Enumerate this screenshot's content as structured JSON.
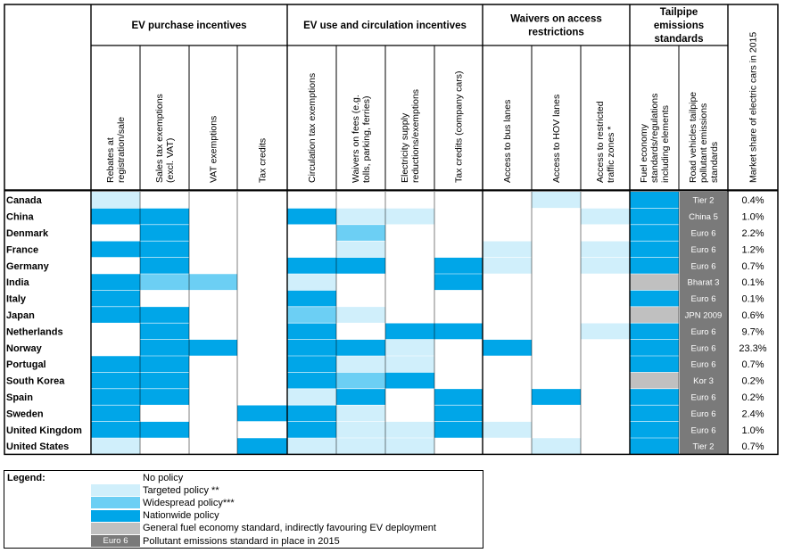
{
  "palette": {
    "none": "#ffffff",
    "targeted": "#d0effb",
    "widespread": "#6ccff4",
    "nationwide": "#00a6e8",
    "fuel_economy": "#c0c0c0",
    "pollutant": "#7a7a7a"
  },
  "groups": [
    {
      "label": "EV purchase incentives",
      "cols": 4
    },
    {
      "label": "EV use and circulation incentives",
      "cols": 4
    },
    {
      "label": "Waivers on access restrictions",
      "cols": 3
    },
    {
      "label": "Tailpipe emissions standards",
      "cols": 2
    }
  ],
  "columns": [
    "Rebates at registration/sale",
    "Sales tax exemptions (excl. VAT)",
    "VAT exemptions",
    "Tax credits",
    "Circulation tax exemptions",
    "Waivers on fees (e.g. tolls, parking, ferries)",
    "Electricity supply reductions/exemptions",
    "Tax credits (company cars)",
    "Access to bus lanes",
    "Access to HOV lanes",
    "Access to restricted traffic zones *",
    "Fuel economy standards/regulations including elements",
    "Road vehicles tailpipe pollutant emissions standards"
  ],
  "market_share_header": "Market share of electric cars in 2015",
  "countries": [
    {
      "name": "Canada",
      "cells": [
        "T",
        "0",
        "0",
        "0",
        "0",
        "0",
        "0",
        "0",
        "0",
        "T",
        "0",
        "N"
      ],
      "standard": "Tier 2",
      "share": "0.4%"
    },
    {
      "name": "China",
      "cells": [
        "N",
        "N",
        "0",
        "0",
        "N",
        "T",
        "T",
        "0",
        "0",
        "0",
        "T",
        "N"
      ],
      "standard": "China 5",
      "share": "1.0%"
    },
    {
      "name": "Denmark",
      "cells": [
        "0",
        "N",
        "0",
        "0",
        "0",
        "W",
        "0",
        "0",
        "0",
        "0",
        "0",
        "N"
      ],
      "standard": "Euro 6",
      "share": "2.2%"
    },
    {
      "name": "France",
      "cells": [
        "N",
        "N",
        "0",
        "0",
        "0",
        "T",
        "0",
        "0",
        "T",
        "0",
        "T",
        "N"
      ],
      "standard": "Euro 6",
      "share": "1.2%"
    },
    {
      "name": "Germany",
      "cells": [
        "0",
        "N",
        "0",
        "0",
        "N",
        "N",
        "0",
        "N",
        "T",
        "0",
        "T",
        "N"
      ],
      "standard": "Euro 6",
      "share": "0.7%"
    },
    {
      "name": "India",
      "cells": [
        "N",
        "W",
        "W",
        "0",
        "T",
        "0",
        "0",
        "N",
        "0",
        "0",
        "0",
        "G"
      ],
      "standard": "Bharat 3",
      "share": "0.1%"
    },
    {
      "name": "Italy",
      "cells": [
        "N",
        "0",
        "0",
        "0",
        "N",
        "0",
        "0",
        "0",
        "0",
        "0",
        "0",
        "N"
      ],
      "standard": "Euro 6",
      "share": "0.1%"
    },
    {
      "name": "Japan",
      "cells": [
        "N",
        "N",
        "0",
        "0",
        "W",
        "T",
        "0",
        "0",
        "0",
        "0",
        "0",
        "G"
      ],
      "standard": "JPN 2009",
      "share": "0.6%"
    },
    {
      "name": "Netherlands",
      "cells": [
        "0",
        "N",
        "0",
        "0",
        "N",
        "0",
        "N",
        "N",
        "0",
        "0",
        "T",
        "N"
      ],
      "standard": "Euro 6",
      "share": "9.7%"
    },
    {
      "name": "Norway",
      "cells": [
        "0",
        "N",
        "N",
        "0",
        "N",
        "N",
        "T",
        "0",
        "N",
        "0",
        "0",
        "N"
      ],
      "standard": "Euro 6",
      "share": "23.3%"
    },
    {
      "name": "Portugal",
      "cells": [
        "N",
        "N",
        "0",
        "0",
        "N",
        "T",
        "T",
        "0",
        "0",
        "0",
        "0",
        "N"
      ],
      "standard": "Euro 6",
      "share": "0.7%"
    },
    {
      "name": "South Korea",
      "cells": [
        "N",
        "N",
        "0",
        "0",
        "N",
        "W",
        "N",
        "0",
        "0",
        "0",
        "0",
        "G"
      ],
      "standard": "Kor 3",
      "share": "0.2%"
    },
    {
      "name": "Spain",
      "cells": [
        "N",
        "N",
        "0",
        "0",
        "T",
        "N",
        "0",
        "N",
        "0",
        "N",
        "0",
        "N"
      ],
      "standard": "Euro 6",
      "share": "0.2%"
    },
    {
      "name": "Sweden",
      "cells": [
        "N",
        "0",
        "0",
        "N",
        "N",
        "T",
        "0",
        "N",
        "0",
        "0",
        "0",
        "N"
      ],
      "standard": "Euro 6",
      "share": "2.4%"
    },
    {
      "name": "United Kingdom",
      "cells": [
        "N",
        "N",
        "0",
        "0",
        "N",
        "T",
        "T",
        "N",
        "T",
        "0",
        "0",
        "N"
      ],
      "standard": "Euro 6",
      "share": "1.0%"
    },
    {
      "name": "United States",
      "cells": [
        "T",
        "0",
        "0",
        "N",
        "T",
        "T",
        "T",
        "0",
        "0",
        "T",
        "0",
        "N"
      ],
      "standard": "Tier 2",
      "share": "0.7%"
    }
  ],
  "legend": {
    "title": "Legend:",
    "items": [
      {
        "swatch": "none",
        "label": "No policy",
        "swatch_text": ""
      },
      {
        "swatch": "targeted",
        "label": "Targeted policy **",
        "swatch_text": ""
      },
      {
        "swatch": "widespread",
        "label": "Widespread policy***",
        "swatch_text": ""
      },
      {
        "swatch": "nationwide",
        "label": "Nationwide policy",
        "swatch_text": ""
      },
      {
        "swatch": "fuel_economy",
        "label": "General fuel economy standard, indirectly favouring EV deployment",
        "swatch_text": ""
      },
      {
        "swatch": "pollutant",
        "label": "Pollutant emissions standard in place in 2015",
        "swatch_text": "Euro 6"
      }
    ]
  }
}
